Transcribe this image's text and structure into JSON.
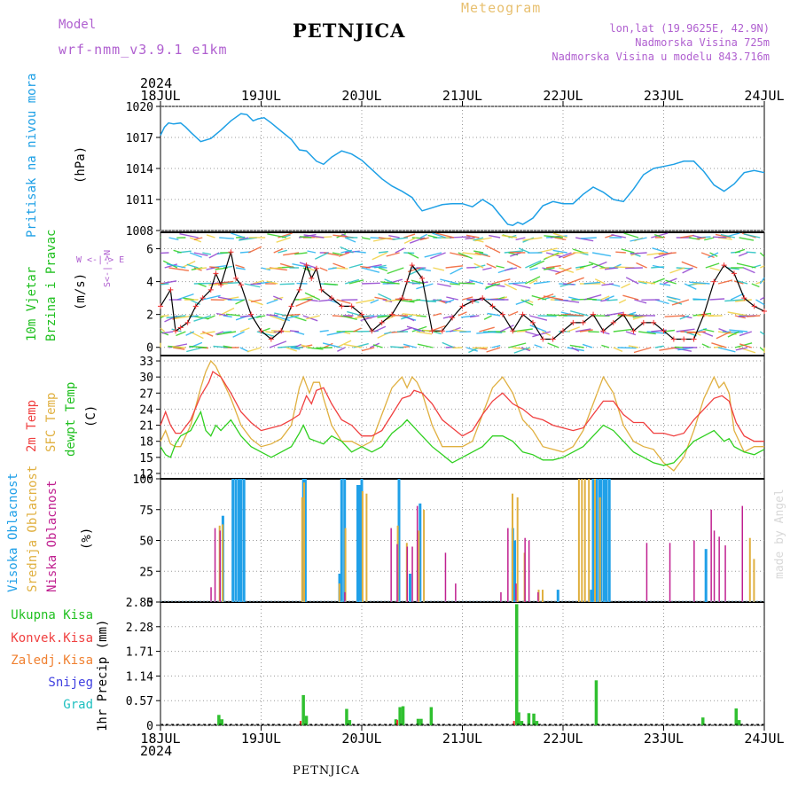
{
  "header": {
    "model_label": "Model",
    "model_name": "wrf-nmm_v3.9.1 e1km",
    "station": "PETNJICA",
    "meteogram": "Meteogram",
    "coords": "lon,lat (19.9625E, 42.9N)",
    "altitude": "Nadmorska Visina 725m",
    "model_altitude": "Nadmorska Visina u modelu 843.716m",
    "year_top": "2024",
    "year_bottom": "2024",
    "footer_station": "PETNJICA",
    "credit": "made by Angel"
  },
  "colors": {
    "pressure": "#1ea0e6",
    "t2m": "#f04040",
    "tsfc": "#e0b040",
    "dewpt": "#30d020",
    "high_cloud": "#20a0e8",
    "mid_cloud": "#e0b040",
    "low_cloud": "#c02090",
    "total_precip": "#30c030",
    "conv_precip": "#f03030",
    "frozen": "#f08030",
    "snow": "#4040e0",
    "grad": "#20c0c0"
  },
  "panel_labels": {
    "pressure": {
      "name": "Pritisak na nivou mora",
      "unit": "(hPa)"
    },
    "wind": {
      "name1": "10m Vjetar",
      "name2": "Brzina i Pravac",
      "unit": "(m/s)",
      "compass_ns": "S<-|->N",
      "compass_we": "W <-|-> E"
    },
    "temp": {
      "t2m": "2m Temp",
      "tsfc": "SFC Temp",
      "dew": "dewpt Temp",
      "unit": "(C)"
    },
    "cloud": {
      "high": "Visoka Oblacnost",
      "mid": "Srednja Oblacnost",
      "low": "Niska Oblacnost",
      "unit": "(%)"
    },
    "precip": {
      "total": "Ukupna Kisa",
      "conv": "Konvek.Kisa",
      "frozen": "Zaledj.Kisa",
      "snow": "Snijeg",
      "grad": "Grad",
      "unit": "1hr Precip (mm)"
    }
  },
  "chart_data": [
    {
      "type": "line",
      "panel": "pressure",
      "x_labels": [
        "18JUL",
        "19JUL",
        "20JUL",
        "21JUL",
        "22JUL",
        "23JUL",
        "24JUL"
      ],
      "ylim": [
        1008,
        1020
      ],
      "yticks": [
        "1008",
        "1011",
        "1014",
        "1017",
        "1020"
      ],
      "series": [
        {
          "x": [
            0,
            0.04,
            0.08,
            0.13,
            0.2,
            0.25,
            0.3,
            0.4,
            0.5,
            0.6,
            0.7,
            0.8,
            0.86,
            0.92,
            0.97,
            1.03,
            1.1,
            1.2,
            1.3,
            1.38,
            1.45,
            1.5,
            1.55,
            1.62,
            1.7,
            1.8,
            1.9,
            2.0,
            2.1,
            2.2,
            2.3,
            2.4,
            2.5,
            2.55,
            2.6,
            2.7,
            2.8,
            2.9,
            3.0,
            3.1,
            3.2,
            3.3,
            3.4,
            3.45,
            3.5,
            3.55,
            3.6,
            3.7,
            3.8,
            3.9,
            4.0,
            4.1,
            4.2,
            4.3,
            4.4,
            4.5,
            4.6,
            4.7,
            4.8,
            4.9,
            5.0,
            5.1,
            5.2,
            5.3,
            5.4,
            5.5,
            5.6,
            5.7,
            5.8,
            5.9,
            6.0
          ],
          "y": [
            1017.2,
            1018.0,
            1018.4,
            1018.3,
            1018.4,
            1018.0,
            1017.5,
            1016.6,
            1016.9,
            1017.7,
            1018.6,
            1019.3,
            1019.2,
            1018.6,
            1018.8,
            1018.9,
            1018.4,
            1017.6,
            1016.8,
            1015.8,
            1015.7,
            1015.2,
            1014.7,
            1014.4,
            1015.1,
            1015.7,
            1015.4,
            1014.8,
            1013.9,
            1013.0,
            1012.3,
            1011.8,
            1011.2,
            1010.5,
            1009.9,
            1010.2,
            1010.5,
            1010.6,
            1010.6,
            1010.3,
            1011.0,
            1010.4,
            1009.2,
            1008.6,
            1008.5,
            1008.8,
            1008.6,
            1009.2,
            1010.4,
            1010.8,
            1010.6,
            1010.6,
            1011.5,
            1012.2,
            1011.7,
            1011.0,
            1010.8,
            1012.0,
            1013.4,
            1014.0,
            1014.2,
            1014.4,
            1014.7,
            1014.7,
            1013.7,
            1012.4,
            1011.8,
            1012.5,
            1013.6,
            1013.8,
            1013.6
          ]
        }
      ]
    },
    {
      "type": "line",
      "panel": "wind",
      "ylim": [
        -0.5,
        7
      ],
      "yticks": [
        "0",
        "2",
        "4",
        "6"
      ],
      "series": [
        {
          "name": "wind speed",
          "x": [
            0,
            0.1,
            0.15,
            0.2,
            0.27,
            0.35,
            0.42,
            0.5,
            0.55,
            0.6,
            0.7,
            0.75,
            0.8,
            0.9,
            1.0,
            1.1,
            1.2,
            1.3,
            1.38,
            1.45,
            1.5,
            1.55,
            1.6,
            1.7,
            1.8,
            1.9,
            2.0,
            2.1,
            2.2,
            2.3,
            2.4,
            2.45,
            2.5,
            2.6,
            2.7,
            2.8,
            2.9,
            3.0,
            3.1,
            3.2,
            3.3,
            3.4,
            3.5,
            3.6,
            3.7,
            3.8,
            3.9,
            4.0,
            4.1,
            4.2,
            4.3,
            4.4,
            4.5,
            4.6,
            4.7,
            4.8,
            4.9,
            5.0,
            5.1,
            5.2,
            5.3,
            5.4,
            5.5,
            5.6,
            5.7,
            5.8,
            5.9,
            6.0
          ],
          "y": [
            2.5,
            3.5,
            1.0,
            1.2,
            1.5,
            2.5,
            3.0,
            3.5,
            4.5,
            3.8,
            5.8,
            4.2,
            3.8,
            2.0,
            1.0,
            0.5,
            1.0,
            2.5,
            3.5,
            5.0,
            4.2,
            4.8,
            3.5,
            3.0,
            2.5,
            2.5,
            2.0,
            1.0,
            1.5,
            2.0,
            3.0,
            4.0,
            5.0,
            4.2,
            1.0,
            1.0,
            1.8,
            2.5,
            2.8,
            3.0,
            2.5,
            2.0,
            1.0,
            2.0,
            1.5,
            0.5,
            0.5,
            1.0,
            1.5,
            1.5,
            2.0,
            1.0,
            1.5,
            2.0,
            1.0,
            1.5,
            1.5,
            1.0,
            0.5,
            0.5,
            0.5,
            2.0,
            4.0,
            5.0,
            4.5,
            3.0,
            2.5,
            2.2
          ]
        }
      ]
    },
    {
      "type": "line",
      "panel": "temperature",
      "ylim": [
        11,
        34
      ],
      "yticks": [
        "12",
        "15",
        "18",
        "21",
        "24",
        "27",
        "30",
        "33"
      ],
      "series": [
        {
          "name": "2m Temp",
          "x": [
            0,
            0.05,
            0.1,
            0.15,
            0.2,
            0.3,
            0.4,
            0.48,
            0.52,
            0.6,
            0.7,
            0.8,
            0.9,
            1.0,
            1.1,
            1.2,
            1.3,
            1.38,
            1.45,
            1.5,
            1.55,
            1.62,
            1.7,
            1.8,
            1.9,
            2.0,
            2.1,
            2.2,
            2.3,
            2.4,
            2.48,
            2.52,
            2.6,
            2.7,
            2.8,
            2.9,
            3.0,
            3.1,
            3.2,
            3.3,
            3.4,
            3.5,
            3.6,
            3.7,
            3.8,
            3.9,
            4.0,
            4.1,
            4.2,
            4.3,
            4.4,
            4.5,
            4.6,
            4.7,
            4.8,
            4.9,
            5.0,
            5.1,
            5.2,
            5.3,
            5.4,
            5.5,
            5.58,
            5.65,
            5.72,
            5.8,
            5.9,
            6.0
          ],
          "y": [
            21,
            23.5,
            21,
            19.5,
            19.5,
            22,
            26.5,
            29,
            31,
            30,
            27,
            23.5,
            21.5,
            20,
            20.5,
            21,
            22,
            23,
            26.5,
            25,
            27.5,
            28,
            25,
            22,
            21,
            19,
            19,
            20,
            23,
            26,
            26.5,
            27.5,
            27,
            25,
            22,
            20.5,
            19,
            20,
            23,
            25.5,
            27,
            25,
            24,
            22.5,
            22,
            21,
            20.5,
            20,
            20.5,
            23,
            25.5,
            25.5,
            23,
            21.5,
            21.5,
            19.5,
            19.5,
            19,
            19.5,
            22,
            24,
            26,
            26.5,
            25.5,
            21.5,
            19,
            18,
            18
          ]
        },
        {
          "name": "SFC Temp",
          "x": [
            0,
            0.05,
            0.1,
            0.15,
            0.2,
            0.3,
            0.4,
            0.45,
            0.5,
            0.55,
            0.6,
            0.7,
            0.8,
            0.9,
            1.0,
            1.1,
            1.2,
            1.3,
            1.38,
            1.42,
            1.48,
            1.52,
            1.58,
            1.62,
            1.7,
            1.8,
            1.9,
            2.0,
            2.1,
            2.2,
            2.3,
            2.4,
            2.45,
            2.5,
            2.55,
            2.6,
            2.7,
            2.8,
            2.9,
            3.0,
            3.1,
            3.2,
            3.3,
            3.4,
            3.5,
            3.6,
            3.7,
            3.8,
            3.9,
            4.0,
            4.1,
            4.2,
            4.3,
            4.4,
            4.5,
            4.6,
            4.7,
            4.8,
            4.9,
            5.0,
            5.1,
            5.2,
            5.3,
            5.4,
            5.5,
            5.55,
            5.6,
            5.65,
            5.7,
            5.8,
            5.9,
            6.0
          ],
          "y": [
            18,
            20,
            17.5,
            17,
            17,
            21,
            28,
            31,
            33,
            32,
            30,
            26,
            21,
            18.5,
            17,
            17.5,
            18.5,
            21,
            28,
            30,
            27,
            29,
            29,
            26,
            21,
            18,
            18,
            17,
            18,
            23,
            28,
            30,
            28,
            30,
            29,
            27,
            21,
            17,
            17,
            17,
            18,
            23,
            28,
            30,
            27,
            22,
            20,
            17,
            16.5,
            16,
            17,
            20,
            25,
            30,
            27,
            21,
            18,
            17,
            16.5,
            14,
            12.5,
            15,
            20,
            26,
            30,
            28,
            29,
            27,
            20,
            16,
            17,
            17
          ]
        },
        {
          "name": "dewpt Temp",
          "x": [
            0,
            0.05,
            0.1,
            0.15,
            0.2,
            0.3,
            0.4,
            0.45,
            0.5,
            0.55,
            0.6,
            0.7,
            0.8,
            0.9,
            1.0,
            1.1,
            1.2,
            1.3,
            1.38,
            1.42,
            1.48,
            1.55,
            1.62,
            1.7,
            1.8,
            1.9,
            2.0,
            2.1,
            2.2,
            2.3,
            2.4,
            2.45,
            2.5,
            2.6,
            2.7,
            2.8,
            2.9,
            3.0,
            3.1,
            3.2,
            3.3,
            3.4,
            3.5,
            3.6,
            3.7,
            3.8,
            3.9,
            4.0,
            4.1,
            4.2,
            4.3,
            4.4,
            4.5,
            4.6,
            4.7,
            4.8,
            4.9,
            5.0,
            5.1,
            5.2,
            5.3,
            5.4,
            5.5,
            5.6,
            5.65,
            5.7,
            5.8,
            5.9,
            6.0
          ],
          "y": [
            17,
            15.5,
            15,
            17.5,
            19,
            20,
            23.5,
            20,
            19,
            21,
            20,
            22,
            19,
            17,
            16,
            15,
            16,
            17,
            19.5,
            21,
            18.5,
            18,
            17.5,
            19,
            18,
            16,
            17,
            16,
            17,
            19.5,
            21,
            22,
            21,
            19,
            17,
            15.5,
            14,
            15,
            16,
            17,
            19,
            19,
            18,
            16,
            15.5,
            14.5,
            14.5,
            15,
            16,
            17,
            19,
            21,
            20,
            18,
            16,
            15,
            14,
            13.5,
            14,
            16,
            18,
            19,
            20,
            18,
            18.5,
            17,
            16,
            15.5,
            16.5
          ]
        }
      ]
    },
    {
      "type": "bar",
      "panel": "cloud",
      "ylim": [
        0,
        100
      ],
      "yticks": [
        "0",
        "25",
        "50",
        "75",
        "100"
      ],
      "series": [
        {
          "name": "Visoka Oblacnost",
          "x": [
            0.62,
            0.72,
            0.75,
            0.78,
            0.8,
            0.83,
            1.42,
            1.44,
            1.78,
            1.8,
            1.83,
            1.96,
            1.98,
            2.0,
            2.37,
            2.48,
            2.58,
            3.5,
            3.52,
            3.95,
            4.28,
            4.3,
            4.33,
            4.36,
            4.38,
            4.41,
            4.43,
            4.46,
            5.42
          ],
          "values": [
            70,
            100,
            100,
            100,
            100,
            100,
            100,
            100,
            23,
            100,
            100,
            95,
            95,
            100,
            100,
            23,
            80,
            60,
            50,
            10,
            10,
            100,
            100,
            100,
            100,
            100,
            100,
            100,
            43
          ]
        },
        {
          "name": "Srednja Oblacnost",
          "x": [
            0.57,
            0.6,
            1.39,
            1.41,
            1.76,
            1.82,
            1.99,
            2.03,
            2.34,
            2.43,
            2.55,
            2.6,
            3.48,
            3.53,
            3.6,
            3.74,
            3.78,
            4.14,
            4.17,
            4.2,
            4.24,
            4.3,
            4.35,
            5.84,
            5.88
          ],
          "values": [
            62,
            63,
            85,
            97,
            15,
            60,
            90,
            88,
            62,
            48,
            58,
            75,
            88,
            85,
            40,
            10,
            10,
            100,
            100,
            100,
            100,
            100,
            85,
            52,
            35
          ]
        },
        {
          "name": "Niska Oblacnost",
          "x": [
            0.52,
            0.56,
            0.61,
            1.85,
            2.31,
            2.37,
            2.47,
            2.52,
            2.57,
            2.85,
            2.95,
            3.4,
            3.47,
            3.55,
            3.64,
            3.68,
            3.77,
            4.85,
            5.08,
            5.32,
            5.49,
            5.52,
            5.57,
            5.63,
            5.8
          ],
          "values": [
            12,
            60,
            58,
            8,
            60,
            47,
            45,
            45,
            78,
            40,
            15,
            8,
            60,
            15,
            52,
            50,
            8,
            48,
            48,
            50,
            75,
            58,
            53,
            46,
            78
          ]
        }
      ]
    },
    {
      "type": "bar",
      "panel": "precip",
      "ylim": [
        0,
        2.85
      ],
      "yticks": [
        "0",
        "0.57",
        "1.14",
        "1.71",
        "2.28",
        "2.85"
      ],
      "series": [
        {
          "name": "Ukupna Kisa",
          "x": [
            0.58,
            0.61,
            1.42,
            1.45,
            1.85,
            1.88,
            2.34,
            2.38,
            2.41,
            2.56,
            2.59,
            2.69,
            3.54,
            3.56,
            3.59,
            3.66,
            3.71,
            3.74,
            4.33,
            5.39,
            5.72,
            5.75
          ],
          "values": [
            0.24,
            0.14,
            0.7,
            0.22,
            0.38,
            0.12,
            0.14,
            0.42,
            0.44,
            0.15,
            0.15,
            0.42,
            2.8,
            0.3,
            0.1,
            0.28,
            0.27,
            0.1,
            1.04,
            0.18,
            0.39,
            0.12
          ]
        },
        {
          "name": "Konvek.Kisa",
          "x": [
            1.41,
            2.37,
            3.53
          ],
          "values": [
            0.1,
            0.12,
            0.1
          ]
        }
      ]
    }
  ]
}
